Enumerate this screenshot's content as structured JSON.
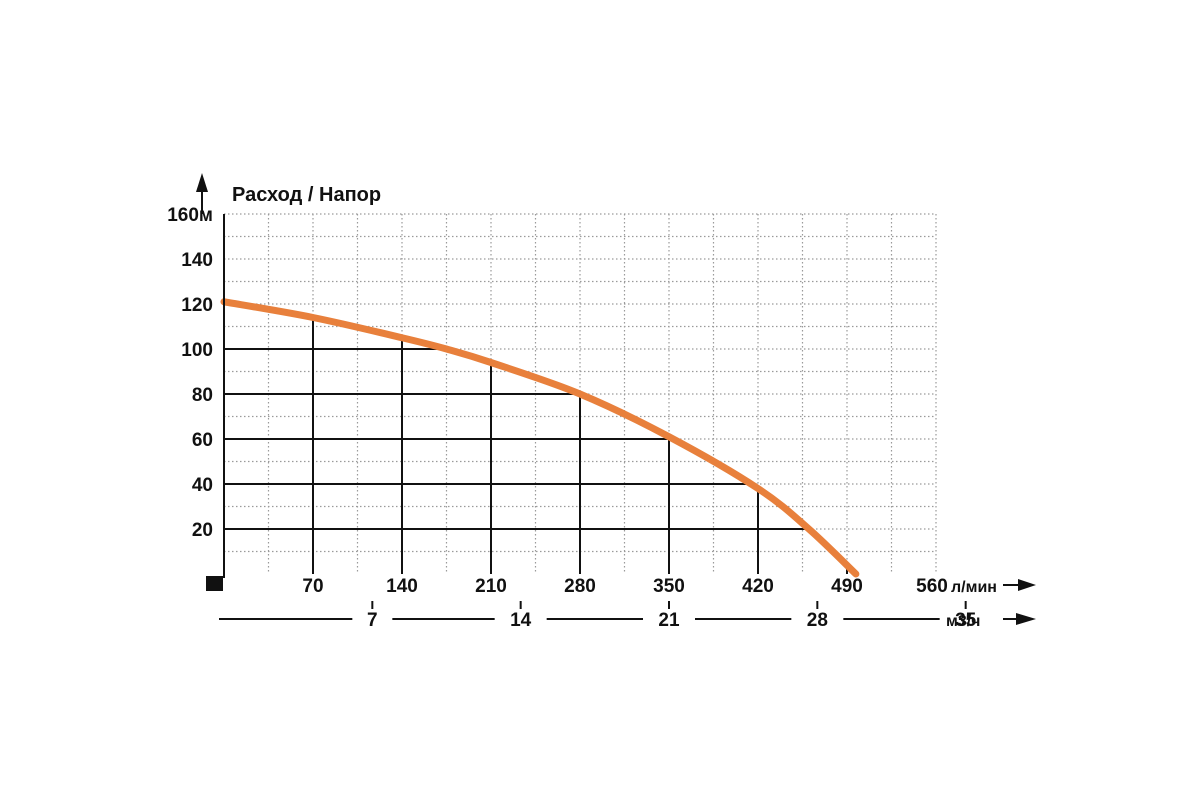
{
  "chart_data": {
    "type": "line",
    "title": "Расход / Напор",
    "y_axis": {
      "tick_labels": [
        "20",
        "40",
        "60",
        "80",
        "100",
        "120",
        "140",
        "160м"
      ],
      "tick_values": [
        20,
        40,
        60,
        80,
        100,
        120,
        140,
        160
      ],
      "ylim": [
        0,
        160
      ]
    },
    "x_axis_primary": {
      "tick_labels": [
        "70",
        "140",
        "210",
        "280",
        "350",
        "420",
        "490",
        "560"
      ],
      "tick_values": [
        70,
        140,
        210,
        280,
        350,
        420,
        490,
        560
      ],
      "unit": "л/мин",
      "xlim": [
        0,
        560
      ]
    },
    "x_axis_secondary": {
      "tick_labels": [
        "7",
        "14",
        "21",
        "28",
        "35"
      ],
      "tick_values": [
        7,
        14,
        21,
        28,
        35
      ],
      "unit": "м3/ч"
    },
    "series": [
      {
        "color": "#e8803c",
        "x": [
          0,
          70,
          140,
          175,
          210,
          280,
          350,
          420,
          460,
          497
        ],
        "y": [
          121,
          114,
          105,
          100,
          94,
          80,
          61,
          38,
          20,
          0
        ]
      }
    ],
    "grid": true
  }
}
